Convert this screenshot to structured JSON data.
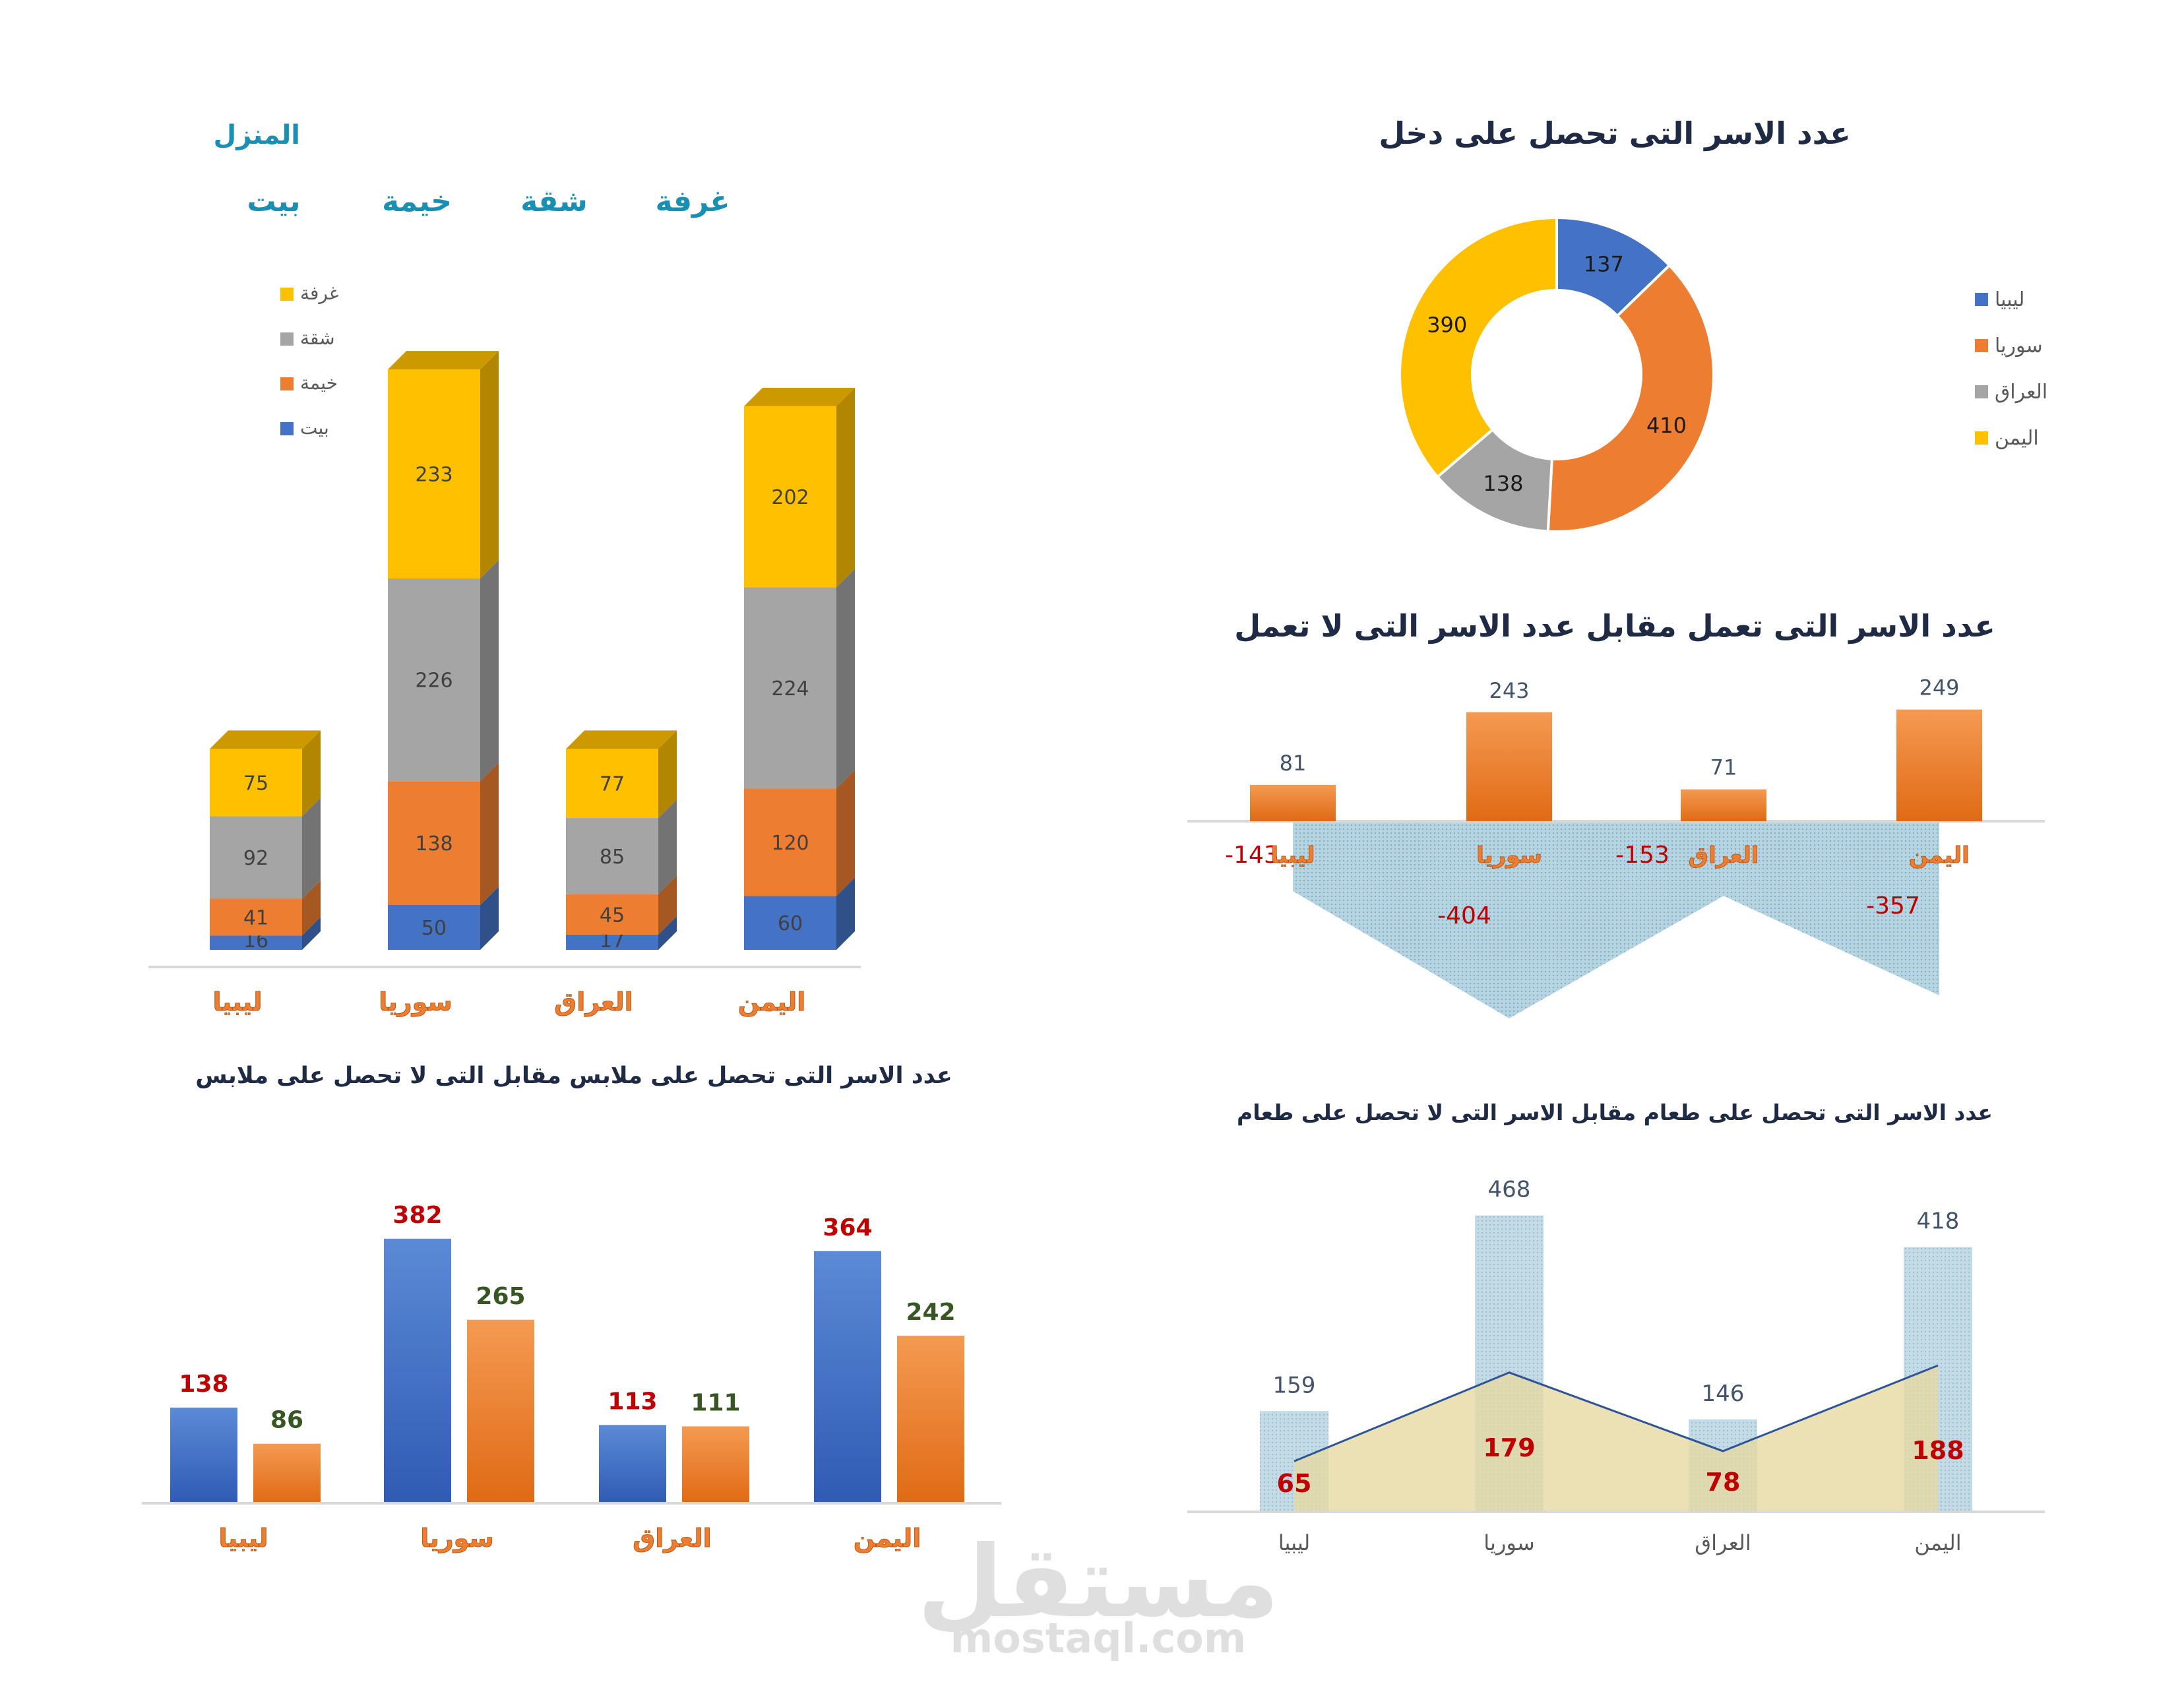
{
  "chart_data": [
    {
      "id": "housing",
      "type": "bar",
      "stacked": true,
      "three_d": true,
      "title": "المنزل",
      "header_labels": [
        "غرفة",
        "شقة",
        "خيمة",
        "بيت"
      ],
      "categories": [
        "ليبيا",
        "سوريا",
        "العراق",
        "اليمن"
      ],
      "series": [
        {
          "name": "بيت",
          "values": [
            16,
            50,
            17,
            60
          ],
          "color": "#4472c4"
        },
        {
          "name": "خيمة",
          "values": [
            41,
            138,
            45,
            120
          ],
          "color": "#ed7d31"
        },
        {
          "name": "شقة",
          "values": [
            92,
            226,
            85,
            224
          ],
          "color": "#a5a5a5"
        },
        {
          "name": "غرفة",
          "values": [
            75,
            233,
            77,
            202
          ],
          "color": "#ffc000"
        }
      ],
      "legend_position": "top-left",
      "grid": false
    },
    {
      "id": "income",
      "type": "pie",
      "donut": true,
      "title": "عدد الاسر التى تحصل على دخل",
      "categories": [
        "ليبيا",
        "سوريا",
        "العراق",
        "اليمن"
      ],
      "values": [
        137,
        410,
        138,
        390
      ],
      "colors": [
        "#4472c4",
        "#ed7d31",
        "#a5a5a5",
        "#ffc000"
      ],
      "legend_position": "right"
    },
    {
      "id": "work",
      "type": "bar",
      "title": "عدد الاسر التى تعمل مقابل عدد الاسر التى لا تعمل",
      "categories": [
        "ليبيا",
        "سوريا",
        "العراق",
        "اليمن"
      ],
      "series": [
        {
          "values": [
            81,
            243,
            71,
            249
          ],
          "color": "#ed7d31"
        },
        {
          "values": [
            -143,
            -404,
            -153,
            -357
          ],
          "color": "#9dc3d4"
        }
      ],
      "grid": false
    },
    {
      "id": "clothing",
      "type": "bar",
      "title": "عدد الاسر التى تحصل على ملابس مقابل التى لا تحصل على ملابس",
      "categories": [
        "ليبيا",
        "سوريا",
        "العراق",
        "اليمن"
      ],
      "series": [
        {
          "values": [
            138,
            382,
            113,
            364
          ],
          "color": "#4472c4",
          "label_color": "#c00000"
        },
        {
          "values": [
            86,
            265,
            111,
            242
          ],
          "color": "#ed7d31",
          "label_color": "#375623"
        }
      ],
      "grid": false
    },
    {
      "id": "food",
      "type": "bar",
      "title": "عدد الاسر التى تحصل على طعام مقابل الاسر التى لا تحصل على طعام",
      "categories": [
        "ليبيا",
        "سوريا",
        "العراق",
        "اليمن"
      ],
      "series": [
        {
          "values": [
            159,
            468,
            146,
            418
          ],
          "color": "#9dc3d4",
          "kind": "bar"
        },
        {
          "values": [
            65,
            179,
            78,
            188
          ],
          "color": "#e6d9a2",
          "kind": "area"
        }
      ],
      "grid": false
    }
  ],
  "watermark": {
    "text": "مستقل",
    "subtext": "mostaql.com"
  }
}
